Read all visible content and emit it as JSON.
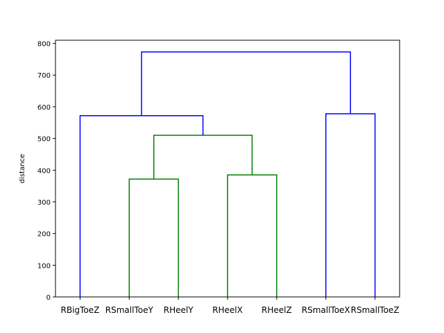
{
  "chart_data": {
    "type": "dendrogram",
    "ylabel": "distance",
    "xlabel": "",
    "title": "",
    "ylim": [
      0,
      810
    ],
    "yticks": [
      0,
      100,
      200,
      300,
      400,
      500,
      600,
      700,
      800
    ],
    "leaves": [
      "RBigToeZ",
      "RSmallToeY",
      "RHeelY",
      "RHeelX",
      "RHeelZ",
      "RSmallToeX",
      "RSmallToeZ"
    ],
    "merges": [
      {
        "left": "RSmallToeY",
        "right": "RHeelY",
        "height": 372,
        "color": "#008000"
      },
      {
        "left": "RHeelX",
        "right": "RHeelZ",
        "height": 385,
        "color": "#008000"
      },
      {
        "left": "cluster(RSmallToeY,RHeelY)",
        "right": "cluster(RHeelX,RHeelZ)",
        "height": 510,
        "color": "#008000"
      },
      {
        "left": "RBigToeZ",
        "right": "cluster(RSmallToeY,RHeelY,RHeelX,RHeelZ)",
        "height": 572,
        "color": "#0000ff"
      },
      {
        "left": "RSmallToeX",
        "right": "RSmallToeZ",
        "height": 578,
        "color": "#0000ff"
      },
      {
        "left": "cluster(RBigToeZ..RHeelZ)",
        "right": "cluster(RSmallToeX,RSmallToeZ)",
        "height": 773,
        "color": "#0000ff"
      }
    ],
    "colors": {
      "cluster": "#008000",
      "above_threshold": "#0000ff"
    },
    "grid": false
  }
}
